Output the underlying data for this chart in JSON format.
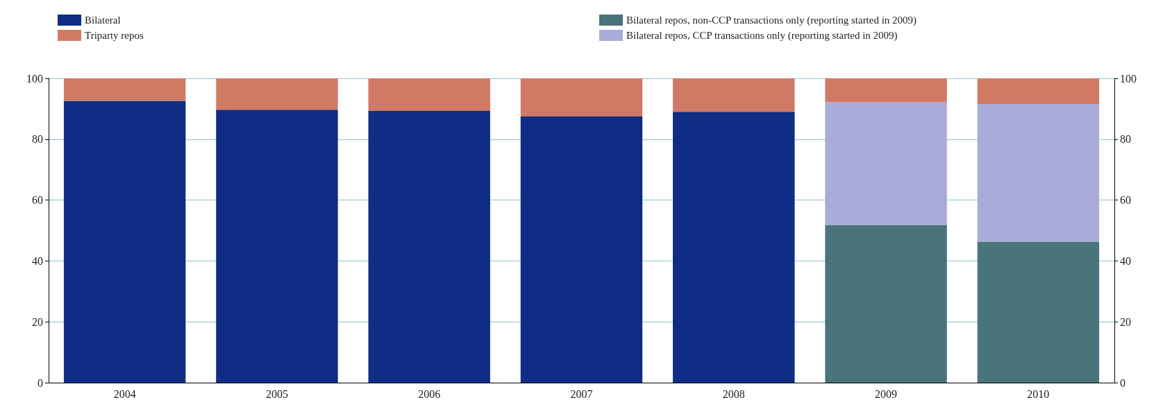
{
  "chart_data": {
    "type": "bar",
    "stacked": true,
    "categories": [
      "2004",
      "2005",
      "2006",
      "2007",
      "2008",
      "2009",
      "2010"
    ],
    "series": [
      {
        "name": "Bilateral",
        "color": "#0f2d84",
        "values": [
          92.6,
          89.7,
          89.3,
          87.5,
          89.0,
          null,
          null
        ]
      },
      {
        "name": "Bilateral repos, non-CCP transactions only (reporting started in 2009)",
        "color": "#48747a",
        "values": [
          null,
          null,
          null,
          null,
          null,
          51.8,
          46.3
        ]
      },
      {
        "name": "Bilateral repos, CCP transactions only (reporting started in 2009)",
        "color": "#a9acd9",
        "values": [
          null,
          null,
          null,
          null,
          null,
          40.4,
          45.3
        ]
      },
      {
        "name": "Triparty repos",
        "color": "#d07a66",
        "values": [
          7.4,
          10.3,
          10.7,
          12.5,
          11.0,
          7.8,
          8.4
        ]
      }
    ],
    "ylim": [
      0,
      100
    ],
    "yticks": [
      0,
      20,
      40,
      60,
      80,
      100
    ],
    "y2lim": [
      0,
      100
    ],
    "y2ticks": [
      0,
      20,
      40,
      60,
      80,
      100
    ],
    "grid": "y",
    "legend": "top"
  }
}
